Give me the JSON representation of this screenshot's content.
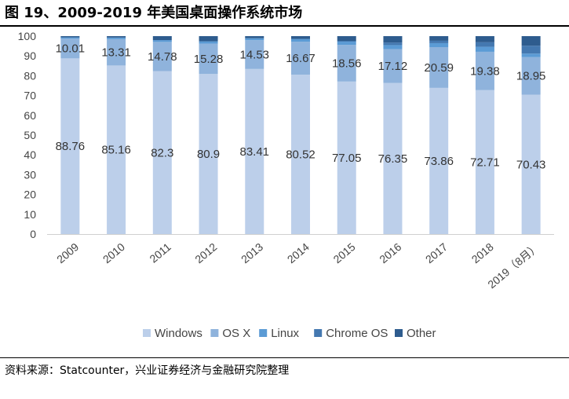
{
  "figure": {
    "title": "图 19、2009-2019 年美国桌面操作系统市场",
    "source": "资料来源：Statcounter，兴业证券经济与金融研究院整理"
  },
  "chart_data": {
    "type": "bar",
    "stacked": true,
    "title": "",
    "xlabel": "",
    "ylabel": "",
    "ylim": [
      0,
      100
    ],
    "yticks": [
      0,
      10,
      20,
      30,
      40,
      50,
      60,
      70,
      80,
      90,
      100
    ],
    "categories": [
      "2009",
      "2010",
      "2011",
      "2012",
      "2013",
      "2014",
      "2015",
      "2016",
      "2017",
      "2018",
      "2019（8月）"
    ],
    "series": [
      {
        "name": "Windows",
        "color": "#bccfea",
        "labeled": true,
        "values": [
          88.76,
          85.16,
          82.3,
          80.9,
          83.41,
          80.52,
          77.05,
          76.35,
          73.86,
          72.71,
          70.43
        ]
      },
      {
        "name": "OS X",
        "color": "#8fb3dc",
        "labeled": true,
        "values": [
          10.01,
          13.31,
          14.78,
          15.28,
          14.53,
          16.67,
          18.56,
          17.12,
          20.59,
          19.38,
          18.95
        ]
      },
      {
        "name": "Linux",
        "color": "#5b9bd5",
        "labeled": false,
        "values": [
          0.6,
          0.8,
          0.9,
          1.2,
          1.0,
          1.4,
          1.6,
          2.0,
          2.0,
          2.5,
          1.8
        ]
      },
      {
        "name": "Chrome OS",
        "color": "#4478b0",
        "labeled": false,
        "values": [
          0,
          0,
          0,
          0,
          0,
          0,
          0.4,
          1.3,
          1.2,
          2.3,
          4.0
        ]
      },
      {
        "name": "Other",
        "color": "#2e5c8e",
        "labeled": false,
        "values": [
          0.63,
          0.73,
          2.02,
          2.62,
          1.06,
          1.41,
          2.39,
          3.23,
          2.35,
          3.11,
          4.82
        ]
      }
    ],
    "legend": {
      "position": "bottom"
    },
    "grid": false
  }
}
